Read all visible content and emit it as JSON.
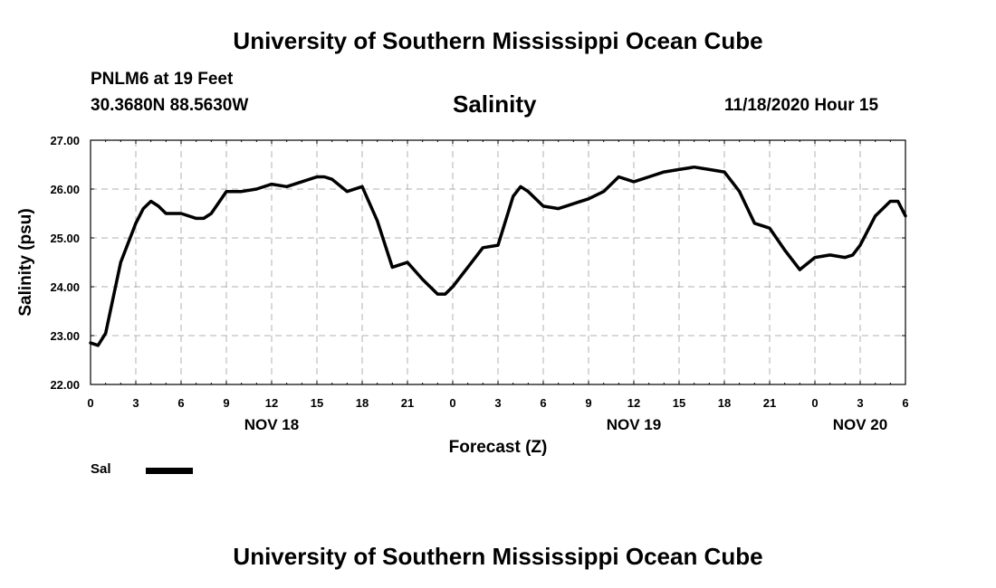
{
  "header": {
    "title": "University of Southern Mississippi Ocean Cube",
    "station": "PNLM6 at 19 Feet",
    "coordinates": "30.3680N 88.5630W",
    "chart_title": "Salinity",
    "issued": "11/18/2020 Hour 15"
  },
  "footer": {
    "title": "University of Southern Mississippi Ocean Cube"
  },
  "legend": {
    "label": "Sal"
  },
  "colors": {
    "line": "#000000",
    "grid": "#b0b0b0"
  },
  "chart_data": {
    "type": "line",
    "title": "Salinity",
    "xlabel": "Forecast (Z)",
    "ylabel": "Salinity (psu)",
    "ylim": [
      22.0,
      27.0
    ],
    "yticks": [
      "22.00",
      "23.00",
      "24.00",
      "25.00",
      "26.00",
      "27.00"
    ],
    "xlim": [
      0,
      54
    ],
    "xticks": [
      "0",
      "3",
      "6",
      "9",
      "12",
      "15",
      "18",
      "21",
      "0",
      "3",
      "6",
      "9",
      "12",
      "15",
      "18",
      "21",
      "0",
      "3",
      "6"
    ],
    "day_labels": [
      {
        "label": "NOV 18",
        "hour": 12
      },
      {
        "label": "NOV 19",
        "hour": 36
      },
      {
        "label": "NOV 20",
        "hour": 51
      }
    ],
    "grid": true,
    "legend_position": "bottom-left",
    "series": [
      {
        "name": "Sal",
        "x": [
          0,
          0.5,
          1,
          2,
          3,
          3.5,
          4,
          4.5,
          5,
          6,
          7,
          7.5,
          8,
          9,
          10,
          11,
          12,
          13,
          14,
          15,
          15.5,
          16,
          17,
          18,
          19,
          20,
          20.5,
          21,
          22,
          23,
          23.5,
          24,
          25,
          26,
          27,
          28,
          28.5,
          29,
          30,
          31,
          31.5,
          32,
          33,
          34,
          35,
          36,
          37,
          38,
          39,
          40,
          41,
          42,
          43,
          44,
          45,
          46,
          47,
          48,
          49,
          50,
          50.5,
          51,
          52,
          53,
          53.5,
          54
        ],
        "values": [
          22.85,
          22.8,
          23.05,
          24.5,
          25.3,
          25.6,
          25.75,
          25.65,
          25.5,
          25.5,
          25.4,
          25.4,
          25.5,
          25.95,
          25.95,
          26.0,
          26.1,
          26.05,
          26.15,
          26.25,
          26.25,
          26.2,
          25.95,
          26.05,
          25.35,
          24.4,
          24.45,
          24.5,
          24.15,
          23.85,
          23.85,
          24.0,
          24.4,
          24.8,
          24.85,
          25.85,
          26.05,
          25.95,
          25.65,
          25.6,
          25.65,
          25.7,
          25.8,
          25.95,
          26.25,
          26.15,
          26.25,
          26.35,
          26.4,
          26.45,
          26.4,
          26.35,
          25.95,
          25.3,
          25.2,
          24.75,
          24.35,
          24.6,
          24.65,
          24.6,
          24.65,
          24.85,
          25.45,
          25.75,
          25.75,
          25.45
        ]
      }
    ]
  }
}
